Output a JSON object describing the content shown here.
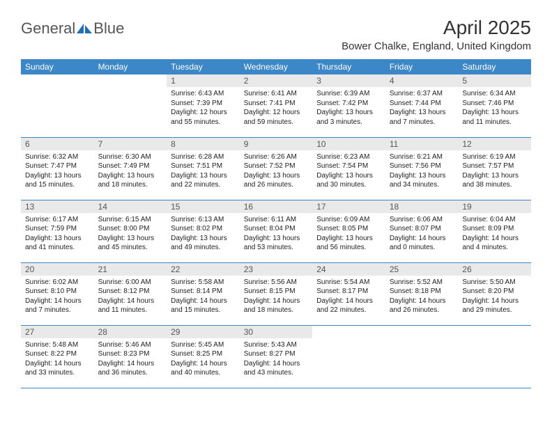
{
  "brand": {
    "part1": "General",
    "part2": "Blue"
  },
  "title": "April 2025",
  "location": "Bower Chalke, England, United Kingdom",
  "colors": {
    "header_bg": "#3c87c7",
    "header_text": "#ffffff",
    "daynum_bg": "#e9e9e9",
    "daynum_text": "#555555",
    "cell_border": "#3c87c7",
    "logo_gray": "#6b6b6b",
    "logo_blue": "#1f6fb2"
  },
  "day_headers": [
    "Sunday",
    "Monday",
    "Tuesday",
    "Wednesday",
    "Thursday",
    "Friday",
    "Saturday"
  ],
  "weeks": [
    [
      {
        "n": "",
        "sr": "",
        "ss": "",
        "dl": ""
      },
      {
        "n": "",
        "sr": "",
        "ss": "",
        "dl": ""
      },
      {
        "n": "1",
        "sr": "Sunrise: 6:43 AM",
        "ss": "Sunset: 7:39 PM",
        "dl": "Daylight: 12 hours and 55 minutes."
      },
      {
        "n": "2",
        "sr": "Sunrise: 6:41 AM",
        "ss": "Sunset: 7:41 PM",
        "dl": "Daylight: 12 hours and 59 minutes."
      },
      {
        "n": "3",
        "sr": "Sunrise: 6:39 AM",
        "ss": "Sunset: 7:42 PM",
        "dl": "Daylight: 13 hours and 3 minutes."
      },
      {
        "n": "4",
        "sr": "Sunrise: 6:37 AM",
        "ss": "Sunset: 7:44 PM",
        "dl": "Daylight: 13 hours and 7 minutes."
      },
      {
        "n": "5",
        "sr": "Sunrise: 6:34 AM",
        "ss": "Sunset: 7:46 PM",
        "dl": "Daylight: 13 hours and 11 minutes."
      }
    ],
    [
      {
        "n": "6",
        "sr": "Sunrise: 6:32 AM",
        "ss": "Sunset: 7:47 PM",
        "dl": "Daylight: 13 hours and 15 minutes."
      },
      {
        "n": "7",
        "sr": "Sunrise: 6:30 AM",
        "ss": "Sunset: 7:49 PM",
        "dl": "Daylight: 13 hours and 18 minutes."
      },
      {
        "n": "8",
        "sr": "Sunrise: 6:28 AM",
        "ss": "Sunset: 7:51 PM",
        "dl": "Daylight: 13 hours and 22 minutes."
      },
      {
        "n": "9",
        "sr": "Sunrise: 6:26 AM",
        "ss": "Sunset: 7:52 PM",
        "dl": "Daylight: 13 hours and 26 minutes."
      },
      {
        "n": "10",
        "sr": "Sunrise: 6:23 AM",
        "ss": "Sunset: 7:54 PM",
        "dl": "Daylight: 13 hours and 30 minutes."
      },
      {
        "n": "11",
        "sr": "Sunrise: 6:21 AM",
        "ss": "Sunset: 7:56 PM",
        "dl": "Daylight: 13 hours and 34 minutes."
      },
      {
        "n": "12",
        "sr": "Sunrise: 6:19 AM",
        "ss": "Sunset: 7:57 PM",
        "dl": "Daylight: 13 hours and 38 minutes."
      }
    ],
    [
      {
        "n": "13",
        "sr": "Sunrise: 6:17 AM",
        "ss": "Sunset: 7:59 PM",
        "dl": "Daylight: 13 hours and 41 minutes."
      },
      {
        "n": "14",
        "sr": "Sunrise: 6:15 AM",
        "ss": "Sunset: 8:00 PM",
        "dl": "Daylight: 13 hours and 45 minutes."
      },
      {
        "n": "15",
        "sr": "Sunrise: 6:13 AM",
        "ss": "Sunset: 8:02 PM",
        "dl": "Daylight: 13 hours and 49 minutes."
      },
      {
        "n": "16",
        "sr": "Sunrise: 6:11 AM",
        "ss": "Sunset: 8:04 PM",
        "dl": "Daylight: 13 hours and 53 minutes."
      },
      {
        "n": "17",
        "sr": "Sunrise: 6:09 AM",
        "ss": "Sunset: 8:05 PM",
        "dl": "Daylight: 13 hours and 56 minutes."
      },
      {
        "n": "18",
        "sr": "Sunrise: 6:06 AM",
        "ss": "Sunset: 8:07 PM",
        "dl": "Daylight: 14 hours and 0 minutes."
      },
      {
        "n": "19",
        "sr": "Sunrise: 6:04 AM",
        "ss": "Sunset: 8:09 PM",
        "dl": "Daylight: 14 hours and 4 minutes."
      }
    ],
    [
      {
        "n": "20",
        "sr": "Sunrise: 6:02 AM",
        "ss": "Sunset: 8:10 PM",
        "dl": "Daylight: 14 hours and 7 minutes."
      },
      {
        "n": "21",
        "sr": "Sunrise: 6:00 AM",
        "ss": "Sunset: 8:12 PM",
        "dl": "Daylight: 14 hours and 11 minutes."
      },
      {
        "n": "22",
        "sr": "Sunrise: 5:58 AM",
        "ss": "Sunset: 8:14 PM",
        "dl": "Daylight: 14 hours and 15 minutes."
      },
      {
        "n": "23",
        "sr": "Sunrise: 5:56 AM",
        "ss": "Sunset: 8:15 PM",
        "dl": "Daylight: 14 hours and 18 minutes."
      },
      {
        "n": "24",
        "sr": "Sunrise: 5:54 AM",
        "ss": "Sunset: 8:17 PM",
        "dl": "Daylight: 14 hours and 22 minutes."
      },
      {
        "n": "25",
        "sr": "Sunrise: 5:52 AM",
        "ss": "Sunset: 8:18 PM",
        "dl": "Daylight: 14 hours and 26 minutes."
      },
      {
        "n": "26",
        "sr": "Sunrise: 5:50 AM",
        "ss": "Sunset: 8:20 PM",
        "dl": "Daylight: 14 hours and 29 minutes."
      }
    ],
    [
      {
        "n": "27",
        "sr": "Sunrise: 5:48 AM",
        "ss": "Sunset: 8:22 PM",
        "dl": "Daylight: 14 hours and 33 minutes."
      },
      {
        "n": "28",
        "sr": "Sunrise: 5:46 AM",
        "ss": "Sunset: 8:23 PM",
        "dl": "Daylight: 14 hours and 36 minutes."
      },
      {
        "n": "29",
        "sr": "Sunrise: 5:45 AM",
        "ss": "Sunset: 8:25 PM",
        "dl": "Daylight: 14 hours and 40 minutes."
      },
      {
        "n": "30",
        "sr": "Sunrise: 5:43 AM",
        "ss": "Sunset: 8:27 PM",
        "dl": "Daylight: 14 hours and 43 minutes."
      },
      {
        "n": "",
        "sr": "",
        "ss": "",
        "dl": ""
      },
      {
        "n": "",
        "sr": "",
        "ss": "",
        "dl": ""
      },
      {
        "n": "",
        "sr": "",
        "ss": "",
        "dl": ""
      }
    ]
  ]
}
